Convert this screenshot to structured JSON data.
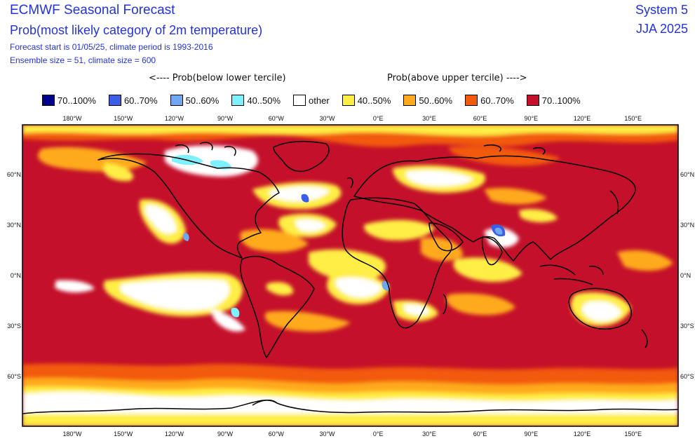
{
  "header": {
    "title": "ECMWF Seasonal Forecast",
    "subtitle": "Prob(most likely category of 2m temperature)",
    "forecast_start": "Forecast start is 01/05/25, climate period is 1993-2016",
    "ensemble": "Ensemble size = 51, climate size = 600",
    "system": "System 5",
    "season": "JJA 2025"
  },
  "legend": {
    "below_label": "<---- Prob(below lower tercile)",
    "above_label": "Prob(above upper tercile) ---->",
    "items": [
      {
        "label": "70..100%",
        "color": "#00008b"
      },
      {
        "label": "60..70%",
        "color": "#3a5fe5"
      },
      {
        "label": "50..60%",
        "color": "#6fa8f0"
      },
      {
        "label": "40..50%",
        "color": "#7ff0ff"
      },
      {
        "label": "other",
        "color": "#ffffff"
      },
      {
        "label": "40..50%",
        "color": "#ffee44"
      },
      {
        "label": "50..60%",
        "color": "#ffaa1e"
      },
      {
        "label": "60..70%",
        "color": "#f25a0c"
      },
      {
        "label": "70..100%",
        "color": "#c4102a"
      }
    ]
  },
  "map": {
    "lon_ticks": [
      "180°W",
      "150°W",
      "120°W",
      "90°W",
      "60°W",
      "30°W",
      "0°E",
      "30°E",
      "60°E",
      "90°E",
      "120°E",
      "150°E"
    ],
    "lat_ticks": [
      "60°N",
      "30°N",
      "0°N",
      "30°S",
      "60°S"
    ]
  }
}
